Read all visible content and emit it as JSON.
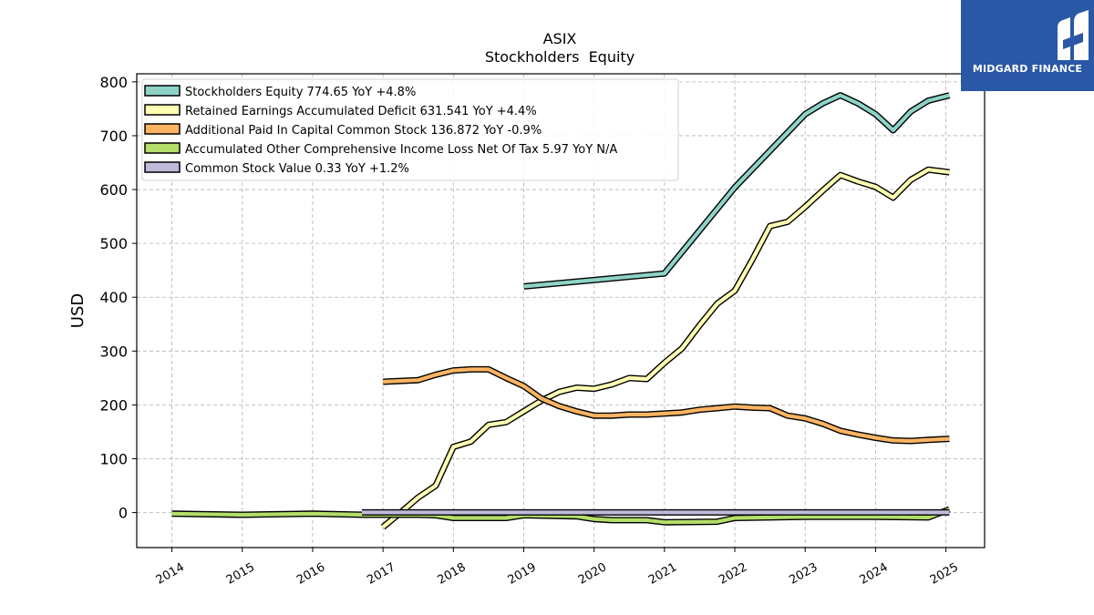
{
  "chart_data": {
    "type": "line",
    "title": "ASIX",
    "subtitle": "Stockholders  Equity",
    "ylabel": "USD",
    "xlabel": "",
    "xlim": [
      2013.5,
      2025.55
    ],
    "ylim": [
      -65,
      815
    ],
    "yticks": [
      0,
      100,
      200,
      300,
      400,
      500,
      600,
      700,
      800
    ],
    "xticks": [
      "2014",
      "2015",
      "2016",
      "2017",
      "2018",
      "2019",
      "2020",
      "2021",
      "2022",
      "2023",
      "2024",
      "2025"
    ],
    "grid": true,
    "legend_position": "top-left",
    "series": [
      {
        "name": "Stockholders Equity",
        "legend_label": "Stockholders Equity  774.65 YoY +4.8%",
        "color": "#8dd3c7",
        "points": [
          [
            2019.0,
            420
          ],
          [
            2021.0,
            444
          ],
          [
            2022.0,
            604
          ],
          [
            2023.0,
            740
          ],
          [
            2023.25,
            760
          ],
          [
            2023.5,
            775
          ],
          [
            2023.75,
            760
          ],
          [
            2024.0,
            740
          ],
          [
            2024.25,
            710
          ],
          [
            2024.5,
            745
          ],
          [
            2024.75,
            765
          ],
          [
            2025.05,
            775
          ]
        ]
      },
      {
        "name": "Retained Earnings Accumulated Deficit",
        "legend_label": "Retained Earnings Accumulated Deficit  631.541 YoY +4.4%",
        "color": "#ffffb3",
        "points": [
          [
            2017.0,
            -27
          ],
          [
            2017.25,
            0
          ],
          [
            2017.5,
            28
          ],
          [
            2017.75,
            50
          ],
          [
            2018.0,
            122
          ],
          [
            2018.25,
            132
          ],
          [
            2018.5,
            163
          ],
          [
            2018.75,
            168
          ],
          [
            2019.0,
            188
          ],
          [
            2019.25,
            208
          ],
          [
            2019.5,
            224
          ],
          [
            2019.75,
            232
          ],
          [
            2020.0,
            230
          ],
          [
            2020.25,
            238
          ],
          [
            2020.5,
            250
          ],
          [
            2020.75,
            248
          ],
          [
            2021.0,
            278
          ],
          [
            2021.25,
            305
          ],
          [
            2021.5,
            348
          ],
          [
            2021.75,
            388
          ],
          [
            2022.0,
            412
          ],
          [
            2022.25,
            470
          ],
          [
            2022.5,
            532
          ],
          [
            2022.75,
            540
          ],
          [
            2023.0,
            568
          ],
          [
            2023.25,
            598
          ],
          [
            2023.5,
            627
          ],
          [
            2023.75,
            615
          ],
          [
            2024.0,
            605
          ],
          [
            2024.25,
            585
          ],
          [
            2024.5,
            618
          ],
          [
            2024.75,
            637
          ],
          [
            2025.05,
            632
          ]
        ]
      },
      {
        "name": "Additional Paid In Capital Common Stock",
        "legend_label": "Additional Paid In Capital Common Stock  136.872 YoY -0.9%",
        "color": "#fdb462",
        "points": [
          [
            2017.0,
            243
          ],
          [
            2017.5,
            246
          ],
          [
            2017.75,
            256
          ],
          [
            2018.0,
            264
          ],
          [
            2018.25,
            266
          ],
          [
            2018.5,
            266
          ],
          [
            2018.75,
            250
          ],
          [
            2019.0,
            235
          ],
          [
            2019.25,
            212
          ],
          [
            2019.5,
            198
          ],
          [
            2019.75,
            188
          ],
          [
            2020.0,
            180
          ],
          [
            2020.25,
            180
          ],
          [
            2020.5,
            182
          ],
          [
            2020.75,
            182
          ],
          [
            2021.0,
            184
          ],
          [
            2021.25,
            186
          ],
          [
            2021.5,
            191
          ],
          [
            2021.75,
            194
          ],
          [
            2022.0,
            197
          ],
          [
            2022.25,
            195
          ],
          [
            2022.5,
            194
          ],
          [
            2022.75,
            180
          ],
          [
            2023.0,
            175
          ],
          [
            2023.25,
            165
          ],
          [
            2023.5,
            152
          ],
          [
            2023.75,
            145
          ],
          [
            2024.0,
            139
          ],
          [
            2024.25,
            134
          ],
          [
            2024.5,
            133
          ],
          [
            2024.75,
            135
          ],
          [
            2025.05,
            137
          ]
        ]
      },
      {
        "name": "Accumulated Other Comprehensive Income Loss Net Of Tax",
        "legend_label": "Accumulated Other Comprehensive Income Loss Net Of Tax  5.97 YoY N/A",
        "color": "#b3de69",
        "points": [
          [
            2014.0,
            -2
          ],
          [
            2015.0,
            -4
          ],
          [
            2016.0,
            -2
          ],
          [
            2016.75,
            -4
          ],
          [
            2017.5,
            -4
          ],
          [
            2017.75,
            -5
          ],
          [
            2018.0,
            -10
          ],
          [
            2018.5,
            -10
          ],
          [
            2018.75,
            -10
          ],
          [
            2019.0,
            -5
          ],
          [
            2019.75,
            -7
          ],
          [
            2020.0,
            -12
          ],
          [
            2020.25,
            -14
          ],
          [
            2020.75,
            -14
          ],
          [
            2021.0,
            -18
          ],
          [
            2021.75,
            -17
          ],
          [
            2022.0,
            -10
          ],
          [
            2023.0,
            -8
          ],
          [
            2024.0,
            -8
          ],
          [
            2024.75,
            -9
          ],
          [
            2025.05,
            6
          ]
        ]
      },
      {
        "name": "Common Stock Value",
        "legend_label": "Common Stock Value  0.33 YoY +1.2%",
        "color": "#bebada",
        "points": [
          [
            2016.7,
            0.3
          ],
          [
            2025.05,
            0.33
          ]
        ]
      }
    ]
  },
  "branding": {
    "logo_text": "MIDGARD FINANCE",
    "logo_color": "#2a57a6"
  }
}
